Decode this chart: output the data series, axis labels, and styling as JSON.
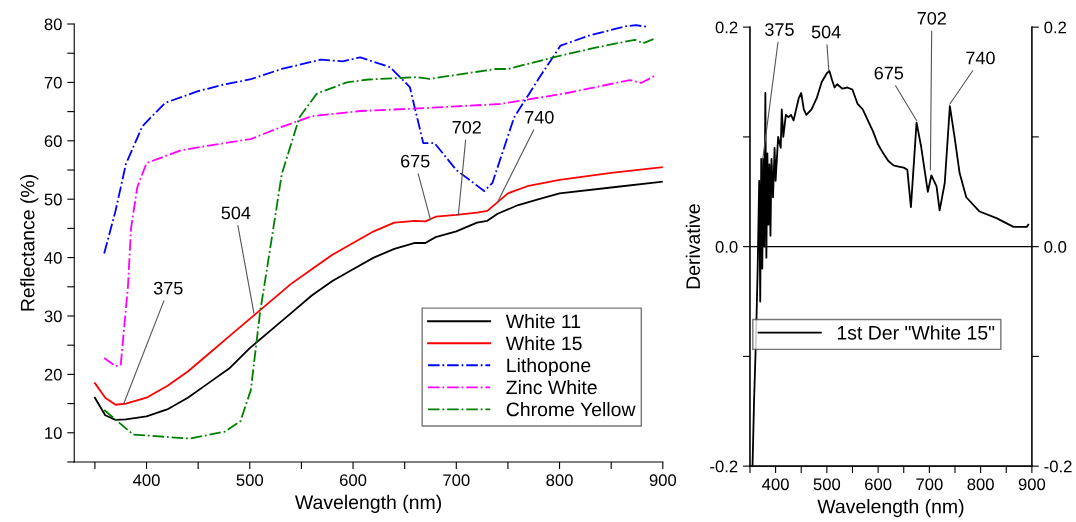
{
  "chart_data": [
    {
      "type": "line",
      "xlabel": "Wavelength (nm)",
      "ylabel": "Reflectance (%)",
      "xlim": [
        330,
        900
      ],
      "ylim": [
        5,
        80
      ],
      "xticks": [
        {
          "value": 350,
          "label": null
        },
        400,
        {
          "value": 450,
          "label": null
        },
        500,
        {
          "value": 550,
          "label": null
        },
        600,
        {
          "value": 650,
          "label": null
        },
        700,
        {
          "value": 750,
          "label": null
        },
        800,
        {
          "value": 850,
          "label": null
        },
        900
      ],
      "yticks": [
        {
          "value": 5,
          "label": null
        },
        10,
        {
          "value": 15,
          "label": null
        },
        20,
        {
          "value": 25,
          "label": null
        },
        30,
        {
          "value": 35,
          "label": null
        },
        40,
        {
          "value": 45,
          "label": null
        },
        50,
        {
          "value": 55,
          "label": null
        },
        60,
        {
          "value": 65,
          "label": null
        },
        70,
        {
          "value": 75,
          "label": null
        },
        80
      ],
      "legend": "lower right",
      "grid": false,
      "series": [
        {
          "name": "White 11",
          "color": "#000000",
          "line_style": "solid",
          "x": [
            350,
            360,
            370,
            380,
            400,
            420,
            440,
            460,
            480,
            500,
            520,
            540,
            560,
            580,
            600,
            620,
            640,
            660,
            670,
            680,
            700,
            720,
            730,
            740,
            760,
            780,
            800,
            850,
            900
          ],
          "values": [
            16,
            13,
            12.2,
            12.3,
            12.8,
            14,
            16,
            18.5,
            21,
            24.5,
            27.5,
            30.5,
            33.5,
            36,
            38,
            40,
            41.5,
            42.5,
            42.5,
            43.5,
            44.5,
            46,
            46.3,
            47.5,
            49,
            50,
            51,
            52,
            53
          ]
        },
        {
          "name": "White 15",
          "color": "#ff0000",
          "line_style": "solid",
          "x": [
            350,
            360,
            370,
            380,
            400,
            420,
            440,
            460,
            480,
            500,
            520,
            540,
            560,
            580,
            600,
            620,
            640,
            660,
            670,
            680,
            700,
            720,
            730,
            740,
            750,
            770,
            800,
            850,
            900
          ],
          "values": [
            18.5,
            16,
            14.8,
            15,
            16,
            18,
            20.5,
            23.5,
            26.5,
            29.5,
            32.5,
            35.5,
            38,
            40.5,
            42.5,
            44.5,
            46,
            46.3,
            46.2,
            47,
            47.3,
            47.7,
            48,
            49.5,
            51,
            52.3,
            53.3,
            54.5,
            55.5
          ]
        },
        {
          "name": "Lithopone",
          "color": "#0000ff",
          "line_style": "dashdot",
          "x": [
            359,
            370,
            380,
            396,
            418,
            450,
            474,
            500,
            531,
            569,
            590,
            607,
            636,
            655,
            668,
            679,
            700,
            715,
            727,
            735,
            756,
            780,
            801,
            830,
            864,
            874,
            885
          ],
          "values": [
            40.7,
            48,
            56,
            62.5,
            66.5,
            68.5,
            69.6,
            70.5,
            72.3,
            73.9,
            73.6,
            74.3,
            72.6,
            69.2,
            59.6,
            59.6,
            55,
            53,
            51.4,
            52.8,
            64,
            70.7,
            76.3,
            78.1,
            79.6,
            79.8,
            79.5
          ]
        },
        {
          "name": "Zinc White",
          "color": "#ff00ff",
          "line_style": "dashdot",
          "x": [
            359,
            370,
            375,
            382,
            385,
            391,
            400,
            434,
            472,
            501,
            531,
            560,
            607,
            657,
            700,
            742,
            805,
            868,
            879,
            894
          ],
          "values": [
            22.8,
            21.4,
            21.6,
            35,
            45,
            52,
            56.2,
            58.4,
            59.5,
            60.3,
            62.4,
            64.2,
            65.1,
            65.5,
            65.9,
            66.3,
            68.1,
            70.4,
            69.9,
            71.3
          ]
        },
        {
          "name": "Chrome Yellow",
          "color": "#008000",
          "line_style": "dashdot",
          "x": [
            359,
            387,
            442,
            476,
            491,
            501,
            510,
            518,
            531,
            548,
            565,
            594,
            615,
            662,
            674,
            738,
            750,
            801,
            839,
            873,
            881,
            891
          ],
          "values": [
            13.9,
            9.7,
            9,
            10.2,
            12,
            17.3,
            30.7,
            39.6,
            54.3,
            64,
            68.1,
            70,
            70.5,
            70.9,
            70.6,
            72.3,
            72.3,
            74.6,
            76.1,
            77.3,
            76.7,
            77.4
          ]
        }
      ],
      "annotations": [
        {
          "text": "375",
          "x": 378,
          "y": 15
        },
        {
          "text": "504",
          "x": 504,
          "y": 30.5
        },
        {
          "text": "675",
          "x": 675,
          "y": 46.5
        },
        {
          "text": "702",
          "x": 702,
          "y": 47.3
        },
        {
          "text": "740",
          "x": 740,
          "y": 49.5
        }
      ]
    },
    {
      "type": "line",
      "xlabel": "Wavelength (nm)",
      "ylabel": "Derivative",
      "xlim": [
        350,
        900
      ],
      "ylim": [
        -0.2,
        0.2
      ],
      "xticks": [
        {
          "value": 350,
          "label": null
        },
        400,
        {
          "value": 450,
          "label": null
        },
        500,
        {
          "value": 550,
          "label": null
        },
        600,
        {
          "value": 650,
          "label": null
        },
        700,
        {
          "value": 750,
          "label": null
        },
        800,
        {
          "value": 850,
          "label": null
        },
        900
      ],
      "yticks": [
        {
          "value": -0.2,
          "label": "-0.2"
        },
        {
          "value": -0.1,
          "label": null
        },
        {
          "value": 0,
          "label": "0.0"
        },
        {
          "value": 0.1,
          "label": null
        },
        {
          "value": 0.2,
          "label": "0.2"
        }
      ],
      "y2lim": [
        -0.2,
        0.2
      ],
      "y2ticks": [
        {
          "value": -0.2,
          "label": "-0.2"
        },
        {
          "value": -0.1,
          "label": null
        },
        {
          "value": 0,
          "label": "0.0"
        },
        {
          "value": 0.1,
          "label": null
        },
        {
          "value": 0.2,
          "label": "0.2"
        }
      ],
      "legend": "center",
      "grid": false,
      "ref_lines": [
        {
          "axis": "y",
          "value": 0,
          "color": "#000000"
        }
      ],
      "series": [
        {
          "name": "1st Der \"White 15\"",
          "color": "#000000",
          "line_style": "solid",
          "x": [
            355,
            358,
            362,
            365,
            368,
            370,
            372,
            374,
            376,
            378,
            380,
            382,
            384,
            386,
            388,
            390,
            392,
            395,
            398,
            400,
            405,
            410,
            412,
            415,
            420,
            425,
            430,
            435,
            440,
            445,
            450,
            455,
            460,
            470,
            480,
            490,
            500,
            505,
            510,
            515,
            520,
            530,
            540,
            550,
            560,
            570,
            580,
            590,
            600,
            610,
            620,
            630,
            640,
            650,
            657,
            664,
            675,
            684,
            697,
            704,
            714,
            720,
            730,
            740,
            750,
            759,
            772,
            798,
            831,
            864,
            890,
            893
          ],
          "values": [
            -0.2,
            -0.14,
            -0.08,
            -0.02,
            0.06,
            -0.05,
            0.08,
            -0.02,
            0.08,
            0.0,
            0.14,
            -0.01,
            0.085,
            0.02,
            0.075,
            0.01,
            0.08,
            0.045,
            0.09,
            0.06,
            0.1,
            0.09,
            0.125,
            0.1,
            0.12,
            0.118,
            0.12,
            0.115,
            0.125,
            0.135,
            0.14,
            0.125,
            0.12,
            0.125,
            0.135,
            0.15,
            0.158,
            0.16,
            0.152,
            0.145,
            0.148,
            0.144,
            0.145,
            0.143,
            0.13,
            0.125,
            0.115,
            0.105,
            0.093,
            0.085,
            0.078,
            0.074,
            0.073,
            0.072,
            0.07,
            0.036,
            0.113,
            0.091,
            0.05,
            0.065,
            0.055,
            0.033,
            0.058,
            0.128,
            0.097,
            0.067,
            0.045,
            0.032,
            0.026,
            0.018,
            0.018,
            0.02
          ]
        }
      ],
      "annotations": [
        {
          "text": "375",
          "x": 375,
          "y": 0.08
        },
        {
          "text": "504",
          "x": 504,
          "y": 0.16
        },
        {
          "text": "675",
          "x": 675,
          "y": 0.115
        },
        {
          "text": "702",
          "x": 702,
          "y": 0.07
        },
        {
          "text": "740",
          "x": 740,
          "y": 0.13
        }
      ]
    }
  ]
}
